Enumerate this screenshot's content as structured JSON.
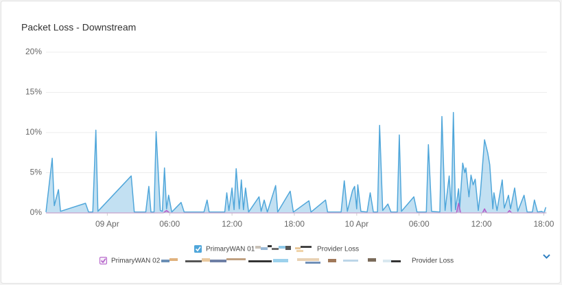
{
  "chart_data": {
    "type": "area",
    "title": "Packet Loss - Downstream",
    "ylim": [
      0,
      20
    ],
    "yticks": [
      {
        "value": 0,
        "label": "0%"
      },
      {
        "value": 5,
        "label": "5%"
      },
      {
        "value": 10,
        "label": "10%"
      },
      {
        "value": 15,
        "label": "15%"
      },
      {
        "value": 20,
        "label": "20%"
      }
    ],
    "xlim": [
      -5.9,
      42.3
    ],
    "xticks": [
      {
        "value": 0,
        "label": "09 Apr"
      },
      {
        "value": 6,
        "label": "06:00"
      },
      {
        "value": 12,
        "label": "12:00"
      },
      {
        "value": 18,
        "label": "18:00"
      },
      {
        "value": 24,
        "label": "10 Apr"
      },
      {
        "value": 30,
        "label": "06:00"
      },
      {
        "value": 36,
        "label": "12:00"
      },
      {
        "value": 42,
        "label": "18:00"
      }
    ],
    "grid": true,
    "series": [
      {
        "name": "PrimaryWAN 01",
        "sub_name": "Provider Loss",
        "color": "#4fa6da",
        "x": [
          -5.9,
          -5.3,
          -5.1,
          -4.7,
          -4.5,
          -2.1,
          -1.8,
          -1.4,
          -1.1,
          -0.9,
          2.3,
          2.6,
          3.7,
          4.0,
          4.2,
          4.5,
          4.7,
          5.1,
          5.3,
          5.5,
          5.7,
          5.9,
          6.2,
          7.1,
          7.4,
          9.3,
          9.6,
          9.8,
          11.3,
          11.5,
          11.7,
          12.0,
          12.2,
          12.4,
          12.7,
          12.9,
          13.1,
          13.3,
          13.6,
          14.6,
          14.8,
          15.1,
          15.4,
          16.2,
          16.4,
          17.6,
          17.9,
          19.4,
          19.6,
          21.0,
          21.2,
          22.5,
          22.8,
          23.1,
          23.6,
          23.8,
          24.0,
          24.1,
          24.4,
          25.0,
          25.3,
          25.6,
          26.0,
          26.2,
          26.5,
          27.0,
          27.3,
          27.9,
          28.1,
          28.3,
          29.5,
          29.8,
          30.7,
          30.9,
          31.2,
          32.0,
          32.2,
          32.5,
          32.9,
          33.1,
          33.3,
          33.5,
          33.8,
          33.9,
          34.2,
          34.4,
          34.5,
          34.8,
          35.0,
          35.2,
          35.4,
          35.7,
          35.9,
          36.3,
          36.6,
          36.8,
          37.1,
          37.2,
          37.5,
          38.0,
          38.2,
          38.6,
          38.8,
          39.2,
          39.5,
          40.1,
          40.4,
          40.9,
          41.1,
          41.4,
          41.8,
          42.0,
          42.2
        ],
        "values": [
          0.1,
          6.8,
          0.9,
          2.9,
          0.2,
          1.2,
          0.1,
          0.1,
          10.3,
          0.2,
          4.6,
          0.1,
          0.1,
          3.3,
          0.1,
          0.1,
          10.1,
          0.3,
          0.2,
          5.6,
          0.5,
          2.2,
          0.1,
          1.3,
          0.1,
          0.1,
          1.6,
          0.1,
          0.1,
          2.5,
          0.3,
          3.1,
          0.4,
          5.5,
          0.5,
          4.1,
          0.4,
          3.1,
          0.1,
          2.0,
          0.2,
          1.6,
          0.1,
          3.4,
          0.1,
          2.7,
          0.1,
          1.5,
          0.1,
          1.6,
          0.1,
          0.1,
          4.0,
          0.2,
          2.8,
          3.3,
          0.5,
          3.5,
          0.2,
          0.1,
          2.5,
          0.1,
          0.1,
          10.9,
          0.3,
          1.1,
          0.1,
          0.1,
          9.7,
          0.2,
          2.0,
          0.1,
          0.1,
          8.5,
          0.2,
          0.1,
          12.0,
          0.3,
          4.6,
          0.2,
          12.5,
          0.4,
          3.0,
          0.5,
          6.2,
          5.0,
          5.6,
          2.0,
          4.7,
          3.5,
          4.2,
          0.3,
          2.5,
          9.1,
          7.5,
          6.0,
          0.5,
          2.5,
          0.3,
          4.1,
          0.6,
          2.2,
          0.5,
          3.1,
          0.2,
          2.2,
          0.1,
          0.1,
          1.6,
          0.1,
          0.2,
          0,
          0.7
        ]
      },
      {
        "name": "PrimaryWAN 02",
        "sub_name": "Provider Loss",
        "color": "#b35ec9",
        "x": [
          -5.9,
          5.4,
          5.7,
          6.0,
          33.6,
          33.8,
          34.0,
          36.1,
          36.3,
          36.5,
          38.5,
          38.7,
          38.9,
          42.2
        ],
        "values": [
          0,
          0,
          0.3,
          0,
          0,
          1.2,
          0,
          0,
          0.5,
          0,
          0,
          0.3,
          0,
          0
        ]
      }
    ]
  }
}
